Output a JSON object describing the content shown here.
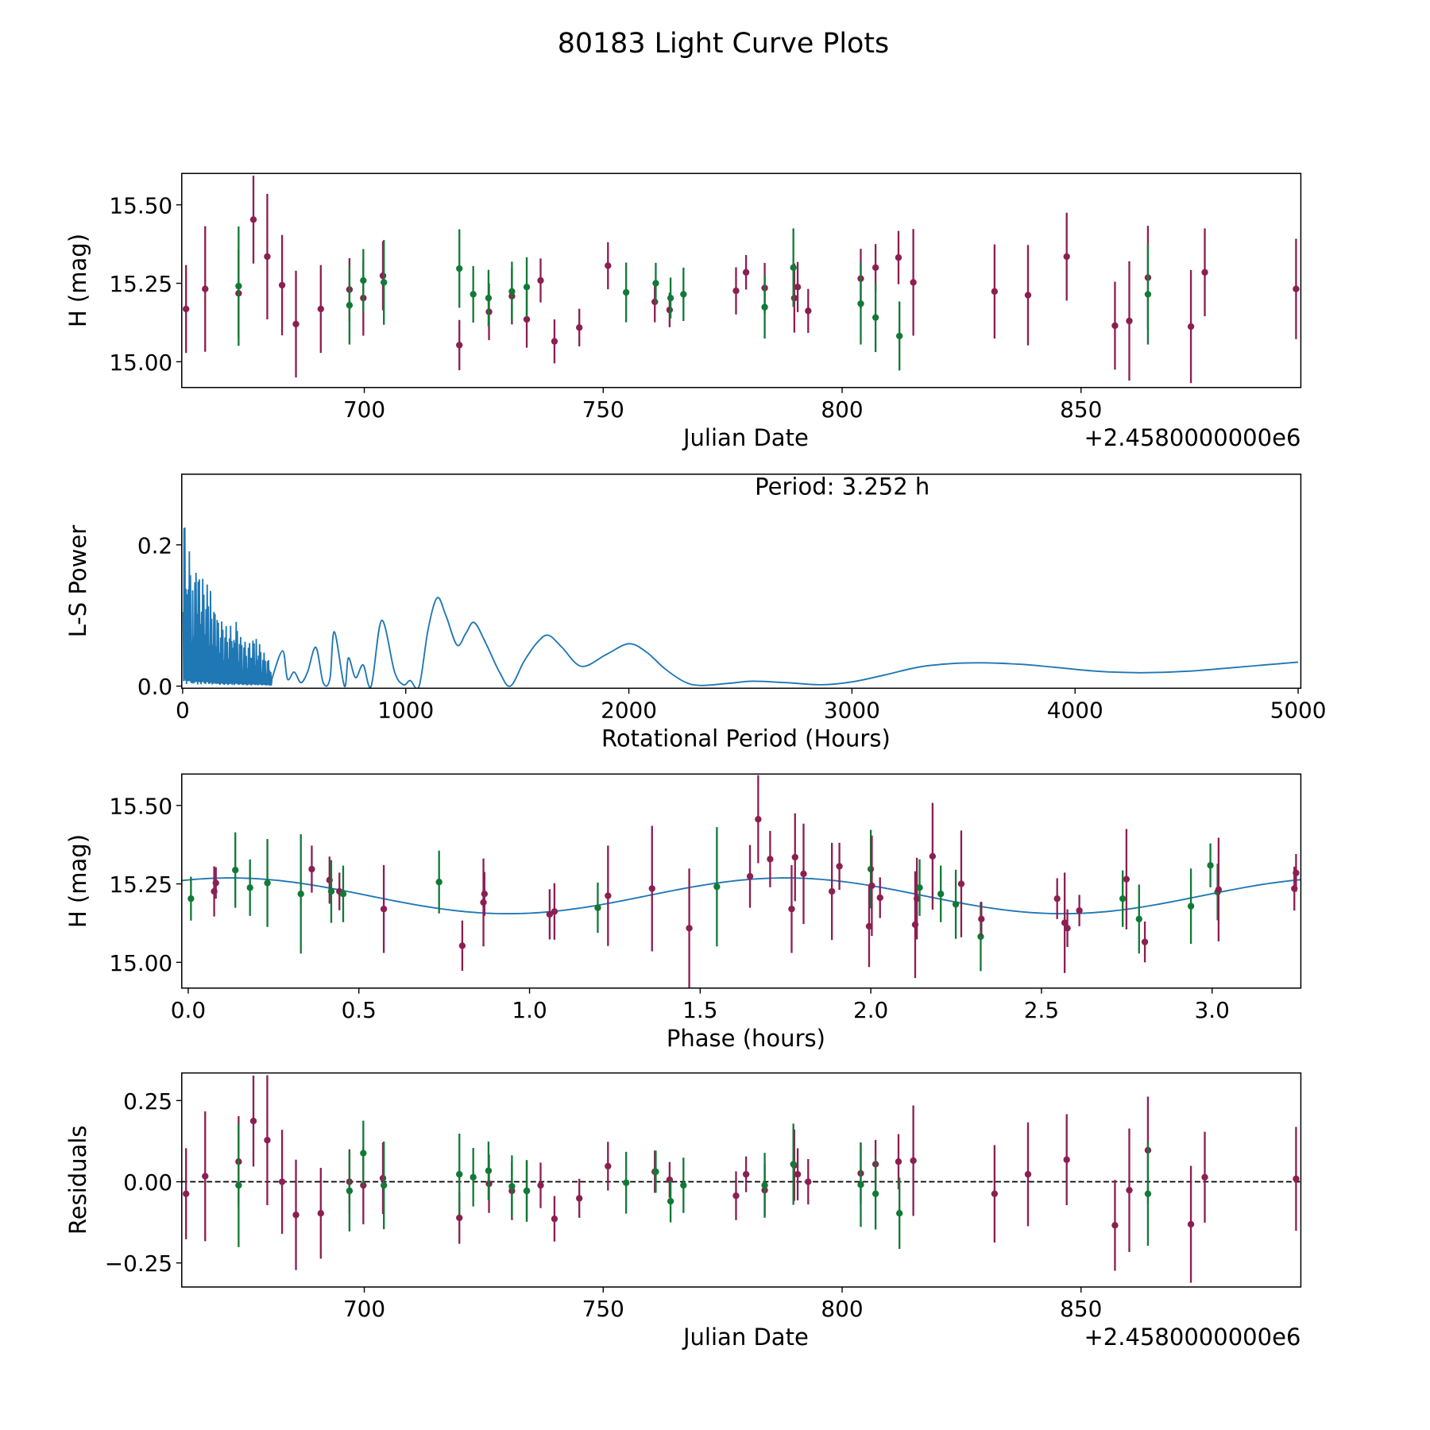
{
  "title": "80183 Light Curve Plots",
  "colors": {
    "band_a": "#8c1f52",
    "band_b": "#127a36",
    "periodogram": "#1f77b4",
    "model": "#1f77b4"
  },
  "chart_data": [
    {
      "type": "scatter",
      "name": "light-curve",
      "xlabel": "Julian Date",
      "ylabel": "H (mag)",
      "x_offset_label": "+2.4580000000e6",
      "xlim": [
        661.8,
        896.0
      ],
      "ylim": [
        14.918,
        15.6
      ],
      "xticks": [
        700,
        750,
        800,
        850
      ],
      "yticks": [
        "15.00",
        "15.25",
        "15.50"
      ],
      "series": [
        {
          "name": "band_a",
          "color_key": "band_a",
          "points_date_mag_err_resid": [
            [
              662.7,
              15.168,
              0.14,
              -0.037
            ],
            [
              666.7,
              15.232,
              0.2,
              0.017
            ],
            [
              673.7,
              15.218,
              0.14,
              0.062
            ],
            [
              676.8,
              15.453,
              0.14,
              0.187
            ],
            [
              679.7,
              15.335,
              0.2,
              0.128
            ],
            [
              682.8,
              15.244,
              0.16,
              0.0
            ],
            [
              685.7,
              15.12,
              0.17,
              -0.102
            ],
            [
              690.9,
              15.168,
              0.14,
              -0.097
            ],
            [
              696.9,
              15.23,
              0.1,
              0.0
            ],
            [
              699.8,
              15.203,
              0.12,
              -0.011
            ],
            [
              703.9,
              15.274,
              0.11,
              0.011
            ],
            [
              719.9,
              15.053,
              0.08,
              -0.111
            ],
            [
              726.1,
              15.159,
              0.09,
              -0.006
            ],
            [
              730.9,
              15.209,
              0.09,
              -0.028
            ],
            [
              734.0,
              15.135,
              0.09,
              -0.028
            ],
            [
              736.9,
              15.259,
              0.07,
              -0.011
            ],
            [
              739.8,
              15.065,
              0.07,
              -0.114
            ],
            [
              745.0,
              15.109,
              0.06,
              -0.051
            ],
            [
              751.0,
              15.306,
              0.075,
              0.048
            ],
            [
              760.8,
              15.191,
              0.065,
              0.031
            ],
            [
              763.9,
              15.165,
              0.055,
              0.006
            ],
            [
              777.8,
              15.226,
              0.075,
              -0.043
            ],
            [
              779.9,
              15.285,
              0.055,
              0.023
            ],
            [
              783.8,
              15.235,
              0.08,
              -0.026
            ],
            [
              790.0,
              15.203,
              0.11,
              0.051
            ],
            [
              790.7,
              15.238,
              0.08,
              0.023
            ],
            [
              792.9,
              15.162,
              0.07,
              0.0
            ],
            [
              803.9,
              15.265,
              0.095,
              0.026
            ],
            [
              807.0,
              15.3,
              0.075,
              0.054
            ],
            [
              811.8,
              15.332,
              0.085,
              0.062
            ],
            [
              814.9,
              15.253,
              0.17,
              0.065
            ],
            [
              831.9,
              15.224,
              0.15,
              -0.037
            ],
            [
              838.9,
              15.212,
              0.16,
              0.023
            ],
            [
              847.0,
              15.335,
              0.14,
              0.068
            ],
            [
              857.1,
              15.115,
              0.14,
              -0.134
            ],
            [
              860.1,
              15.13,
              0.19,
              -0.026
            ],
            [
              864.0,
              15.268,
              0.165,
              0.097
            ],
            [
              873.0,
              15.112,
              0.18,
              -0.131
            ],
            [
              875.9,
              15.285,
              0.14,
              0.014
            ],
            [
              895.0,
              15.232,
              0.16,
              0.009
            ]
          ]
        },
        {
          "name": "band_b",
          "color_key": "band_b",
          "points_date_mag_err_resid": [
            [
              673.7,
              15.241,
              0.19,
              -0.011
            ],
            [
              696.9,
              15.18,
              0.125,
              -0.028
            ],
            [
              699.8,
              15.259,
              0.1,
              0.088
            ],
            [
              704.1,
              15.253,
              0.135,
              -0.011
            ],
            [
              719.9,
              15.297,
              0.125,
              0.023
            ],
            [
              722.8,
              15.215,
              0.09,
              0.014
            ],
            [
              726.0,
              15.203,
              0.09,
              0.034
            ],
            [
              730.9,
              15.224,
              0.095,
              -0.014
            ],
            [
              734.0,
              15.238,
              0.095,
              -0.028
            ],
            [
              754.8,
              15.221,
              0.095,
              -0.003
            ],
            [
              761.0,
              15.25,
              0.065,
              0.031
            ],
            [
              764.1,
              15.203,
              0.065,
              -0.06
            ],
            [
              766.8,
              15.215,
              0.085,
              -0.011
            ],
            [
              783.8,
              15.174,
              0.1,
              -0.011
            ],
            [
              789.8,
              15.3,
              0.125,
              0.054
            ],
            [
              803.9,
              15.185,
              0.13,
              -0.009
            ],
            [
              807.0,
              15.141,
              0.11,
              -0.037
            ],
            [
              812.0,
              15.082,
              0.11,
              -0.097
            ],
            [
              864.0,
              15.215,
              0.16,
              -0.037
            ]
          ]
        }
      ]
    },
    {
      "type": "line",
      "name": "periodogram",
      "xlabel": "Rotational Period (Hours)",
      "ylabel": "L-S Power",
      "annotation": "Period: 3.252 h",
      "xlim": [
        -4,
        5012
      ],
      "ylim": [
        -0.003,
        0.3
      ],
      "xticks": [
        0,
        1000,
        2000,
        3000,
        4000,
        5000
      ],
      "yticks": [
        "0.0",
        "0.2"
      ],
      "noisy_envelope": [
        [
          3,
          0.3
        ],
        [
          10,
          0.23
        ],
        [
          25,
          0.2
        ],
        [
          45,
          0.17
        ],
        [
          70,
          0.16
        ],
        [
          100,
          0.15
        ],
        [
          125,
          0.135
        ],
        [
          150,
          0.1
        ],
        [
          180,
          0.09
        ],
        [
          210,
          0.08
        ],
        [
          230,
          0.105
        ],
        [
          260,
          0.07
        ],
        [
          290,
          0.06
        ],
        [
          330,
          0.07
        ],
        [
          360,
          0.05
        ],
        [
          400,
          0.03
        ]
      ],
      "smooth_points": [
        [
          400,
          0.01
        ],
        [
          448,
          0.05
        ],
        [
          470,
          0.01
        ],
        [
          500,
          0.02
        ],
        [
          530,
          0.005
        ],
        [
          560,
          0.02
        ],
        [
          597,
          0.055
        ],
        [
          630,
          0.005
        ],
        [
          660,
          0.01
        ],
        [
          680,
          0.077
        ],
        [
          725,
          0.0
        ],
        [
          743,
          0.04
        ],
        [
          775,
          0.012
        ],
        [
          809,
          0.03
        ],
        [
          845,
          0.0
        ],
        [
          892,
          0.093
        ],
        [
          950,
          0.02
        ],
        [
          990,
          0.002
        ],
        [
          1020,
          0.008
        ],
        [
          1060,
          0.0
        ],
        [
          1100,
          0.08
        ],
        [
          1141,
          0.125
        ],
        [
          1180,
          0.1
        ],
        [
          1230,
          0.058
        ],
        [
          1270,
          0.075
        ],
        [
          1307,
          0.09
        ],
        [
          1360,
          0.06
        ],
        [
          1420,
          0.02
        ],
        [
          1469,
          0.0
        ],
        [
          1530,
          0.035
        ],
        [
          1590,
          0.062
        ],
        [
          1639,
          0.072
        ],
        [
          1700,
          0.055
        ],
        [
          1788,
          0.028
        ],
        [
          1900,
          0.045
        ],
        [
          2000,
          0.06
        ],
        [
          2080,
          0.048
        ],
        [
          2160,
          0.025
        ],
        [
          2250,
          0.006
        ],
        [
          2324,
          0.001
        ],
        [
          2450,
          0.004
        ],
        [
          2556,
          0.007
        ],
        [
          2700,
          0.005
        ],
        [
          2867,
          0.002
        ],
        [
          3000,
          0.006
        ],
        [
          3150,
          0.016
        ],
        [
          3300,
          0.027
        ],
        [
          3450,
          0.032
        ],
        [
          3585,
          0.033
        ],
        [
          3750,
          0.031
        ],
        [
          3900,
          0.027
        ],
        [
          4100,
          0.021
        ],
        [
          4295,
          0.019
        ],
        [
          4500,
          0.021
        ],
        [
          4700,
          0.026
        ],
        [
          4850,
          0.03
        ],
        [
          5000,
          0.034
        ]
      ]
    },
    {
      "type": "scatter",
      "name": "phase-folded",
      "xlabel": "Phase (hours)",
      "ylabel": "H (mag)",
      "xlim": [
        -0.019,
        3.26
      ],
      "ylim": [
        14.918,
        15.6
      ],
      "xticks": [
        "0.0",
        "0.5",
        "1.0",
        "1.5",
        "2.0",
        "2.5",
        "3.0"
      ],
      "yticks": [
        "15.00",
        "15.25",
        "15.50"
      ],
      "model": {
        "mean": 15.212,
        "amplitude": 0.057,
        "peak_phase": 1.75,
        "period": 3.252,
        "harmonic": 2
      },
      "points_phase_mag_err_band": [
        [
          0.008,
          15.203,
          0.07,
          "band_b"
        ],
        [
          0.076,
          15.226,
          0.08,
          "band_a"
        ],
        [
          0.081,
          15.253,
          0.05,
          "band_a"
        ],
        [
          0.138,
          15.294,
          0.12,
          "band_b"
        ],
        [
          0.181,
          15.238,
          0.09,
          "band_b"
        ],
        [
          0.232,
          15.253,
          0.14,
          "band_b"
        ],
        [
          0.33,
          15.218,
          0.19,
          "band_b"
        ],
        [
          0.362,
          15.297,
          0.075,
          "band_a"
        ],
        [
          0.414,
          15.262,
          0.075,
          "band_a"
        ],
        [
          0.419,
          15.226,
          0.1,
          "band_b"
        ],
        [
          0.443,
          15.226,
          0.06,
          "band_a"
        ],
        [
          0.454,
          15.218,
          0.09,
          "band_b"
        ],
        [
          0.573,
          15.17,
          0.14,
          "band_a"
        ],
        [
          0.735,
          15.256,
          0.1,
          "band_b"
        ],
        [
          0.803,
          15.053,
          0.08,
          "band_a"
        ],
        [
          0.865,
          15.191,
          0.14,
          "band_a"
        ],
        [
          0.868,
          15.218,
          0.07,
          "band_a"
        ],
        [
          1.059,
          15.153,
          0.08,
          "band_a"
        ],
        [
          1.073,
          15.162,
          0.09,
          "band_a"
        ],
        [
          1.2,
          15.174,
          0.08,
          "band_b"
        ],
        [
          1.23,
          15.212,
          0.16,
          "band_a"
        ],
        [
          1.359,
          15.235,
          0.2,
          "band_a"
        ],
        [
          1.468,
          15.109,
          0.19,
          "band_a"
        ],
        [
          1.549,
          15.241,
          0.19,
          "band_b"
        ],
        [
          1.646,
          15.274,
          0.1,
          "band_a"
        ],
        [
          1.67,
          15.456,
          0.14,
          "band_a"
        ],
        [
          1.705,
          15.329,
          0.09,
          "band_a"
        ],
        [
          1.768,
          15.17,
          0.14,
          "band_a"
        ],
        [
          1.778,
          15.335,
          0.14,
          "band_a"
        ],
        [
          1.803,
          15.282,
          0.16,
          "band_a"
        ],
        [
          1.886,
          15.226,
          0.155,
          "band_a"
        ],
        [
          1.908,
          15.306,
          0.075,
          "band_a"
        ],
        [
          1.995,
          15.115,
          0.13,
          "band_a"
        ],
        [
          2.0,
          15.297,
          0.125,
          "band_b"
        ],
        [
          2.003,
          15.244,
          0.16,
          "band_a"
        ],
        [
          2.027,
          15.206,
          0.065,
          "band_a"
        ],
        [
          2.13,
          15.12,
          0.17,
          "band_a"
        ],
        [
          2.135,
          15.203,
          0.13,
          "band_a"
        ],
        [
          2.143,
          15.238,
          0.09,
          "band_b"
        ],
        [
          2.181,
          15.338,
          0.17,
          "band_a"
        ],
        [
          2.205,
          15.218,
          0.09,
          "band_b"
        ],
        [
          2.249,
          15.185,
          0.11,
          "band_b"
        ],
        [
          2.265,
          15.25,
          0.17,
          "band_a"
        ],
        [
          2.322,
          15.082,
          0.11,
          "band_b"
        ],
        [
          2.324,
          15.138,
          0.055,
          "band_a"
        ],
        [
          2.546,
          15.203,
          0.065,
          "band_a"
        ],
        [
          2.568,
          15.126,
          0.16,
          "band_a"
        ],
        [
          2.576,
          15.109,
          0.06,
          "band_a"
        ],
        [
          2.611,
          15.165,
          0.05,
          "band_a"
        ],
        [
          2.738,
          15.203,
          0.09,
          "band_b"
        ],
        [
          2.749,
          15.265,
          0.16,
          "band_a"
        ],
        [
          2.786,
          15.138,
          0.11,
          "band_b"
        ],
        [
          2.803,
          15.065,
          0.065,
          "band_a"
        ],
        [
          2.938,
          15.179,
          0.12,
          "band_b"
        ],
        [
          2.995,
          15.309,
          0.07,
          "band_b"
        ],
        [
          3.016,
          15.224,
          0.09,
          "band_b"
        ],
        [
          3.019,
          15.232,
          0.165,
          "band_a"
        ],
        [
          3.241,
          15.235,
          0.07,
          "band_a"
        ],
        [
          3.246,
          15.285,
          0.06,
          "band_a"
        ]
      ]
    },
    {
      "type": "scatter",
      "name": "residuals",
      "xlabel": "Julian Date",
      "ylabel": "Residuals",
      "x_offset_label": "+2.4580000000e6",
      "xlim": [
        661.8,
        896.0
      ],
      "ylim": [
        -0.324,
        0.335
      ],
      "xticks": [
        700,
        750,
        800,
        850
      ],
      "yticks": [
        "−0.25",
        "0.00",
        "0.25"
      ],
      "reference_line": 0
    }
  ]
}
